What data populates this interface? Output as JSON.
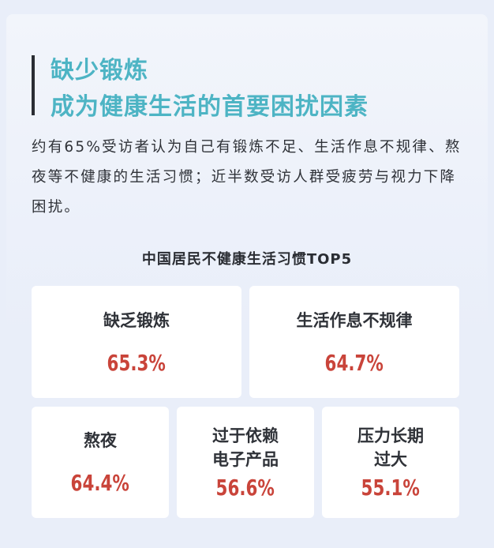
{
  "header": {
    "line1": "缺少锻炼",
    "line2": "成为健康生活的首要困扰因素"
  },
  "description": "约有65%受访者认为自己有锻炼不足、生活作息不规律、熬夜等不健康的生活习惯；近半数受访人群受疲劳与视力下降困扰。",
  "subtitle": "中国居民不健康生活习惯TOP5",
  "items": [
    {
      "label": "缺乏锻炼",
      "value": "65.3%"
    },
    {
      "label": "生活作息不规律",
      "value": "64.7%"
    },
    {
      "label": "熬夜",
      "value": "64.4%"
    },
    {
      "label": "过于依赖\n电子产品",
      "value": "56.6%"
    },
    {
      "label": "压力长期\n过大",
      "value": "55.1%"
    }
  ],
  "colors": {
    "title": "#4db4c4",
    "value": "#c9443a",
    "background": "#e9eef9"
  }
}
